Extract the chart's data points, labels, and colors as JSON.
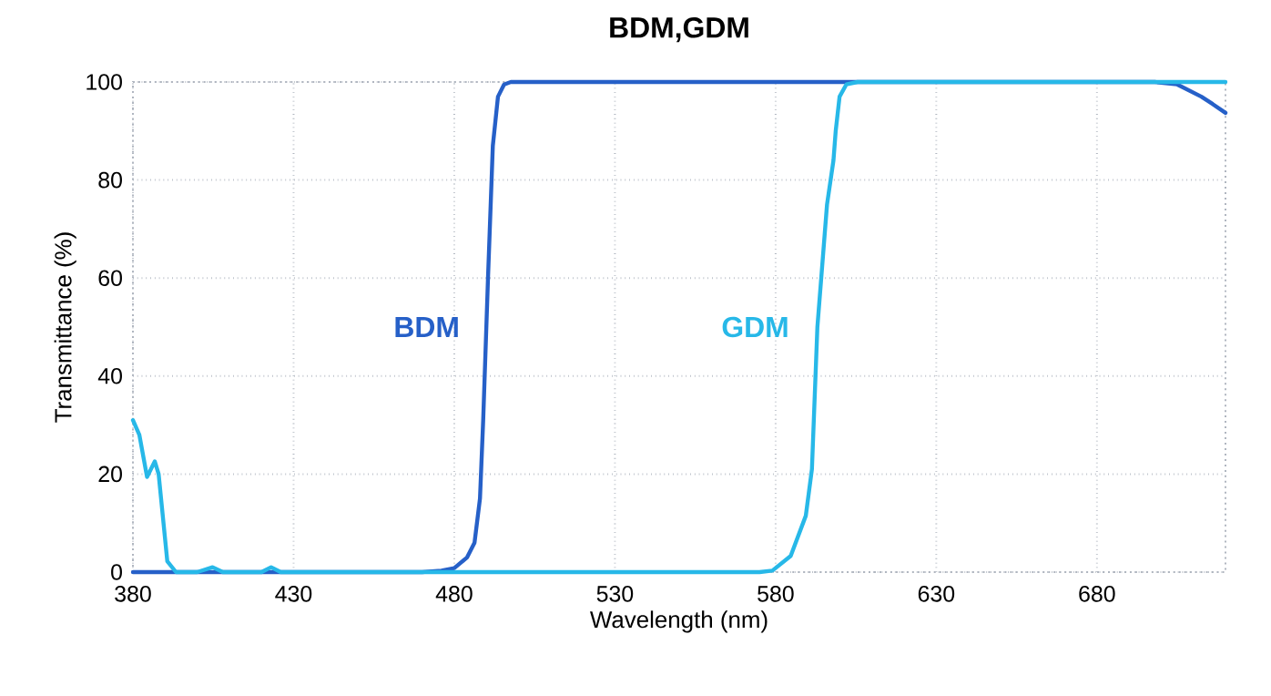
{
  "chart_data": {
    "type": "line",
    "title": "BDM,GDM",
    "xlabel": "Wavelength (nm)",
    "ylabel": "Transmittance (%)",
    "xlim": [
      380,
      720
    ],
    "ylim": [
      0,
      100
    ],
    "xticks": [
      380,
      430,
      480,
      530,
      580,
      630,
      680
    ],
    "yticks": [
      0,
      20,
      40,
      60,
      80,
      100
    ],
    "grid": true,
    "legend": false,
    "marker": "none",
    "line_style": "solid",
    "series": [
      {
        "name": "BDM",
        "color": "#2660c8",
        "x": [
          380,
          400,
          420,
          440,
          460,
          470,
          476,
          480,
          484,
          486.3,
          488,
          489,
          490.5,
          492,
          493.6,
          495.5,
          497.6,
          520,
          560,
          600,
          640,
          680,
          698,
          705,
          712.5,
          716,
          720
        ],
        "values": [
          0,
          0,
          0,
          0,
          0,
          0,
          0.3,
          0.8,
          3,
          6,
          15,
          31,
          60,
          87,
          97,
          99.5,
          100,
          100,
          100,
          100,
          100,
          100,
          100,
          99.5,
          97,
          95.5,
          93.7
        ]
      },
      {
        "name": "GDM",
        "color": "#27b8e8",
        "x": [
          380,
          382,
          384.4,
          386.8,
          388,
          390.7,
          393.4,
          400,
          404.8,
          408,
          420,
          423,
          426,
          440,
          480,
          520,
          560,
          575,
          579,
          584.7,
          589.4,
          591.3,
          593,
          596,
          598,
          598.7,
          599.9,
          602,
          605.5,
          640,
          680,
          720
        ],
        "values": [
          31,
          28,
          19.4,
          22.6,
          20,
          2.2,
          0,
          0,
          1,
          0,
          0,
          1,
          0,
          0,
          0,
          0,
          0,
          0,
          0.3,
          3.3,
          11.5,
          21,
          50,
          75,
          84,
          90,
          97,
          99.5,
          100,
          100,
          100,
          100
        ]
      }
    ]
  }
}
